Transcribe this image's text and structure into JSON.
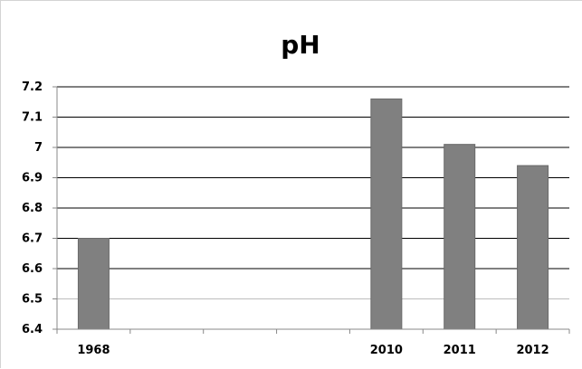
{
  "chart_data": {
    "type": "bar",
    "title": "pH",
    "categories": [
      "1968",
      "",
      "",
      "",
      "2010",
      "2011",
      "2012"
    ],
    "values": [
      6.7,
      null,
      null,
      null,
      7.16,
      7.01,
      6.94
    ],
    "ylim": [
      6.4,
      7.2
    ],
    "yticks": [
      "7.2",
      "7.1",
      "7",
      "6.9",
      "6.8",
      "6.7",
      "6.6",
      "6.5",
      "6.4"
    ],
    "xlabel": "",
    "ylabel": "",
    "grid": true,
    "colors": {
      "bar": "#808080",
      "bar_edge": "#6a6a6a",
      "grid": "#000000",
      "grid_light": "#bdbdbd",
      "axis": "#888888"
    }
  }
}
